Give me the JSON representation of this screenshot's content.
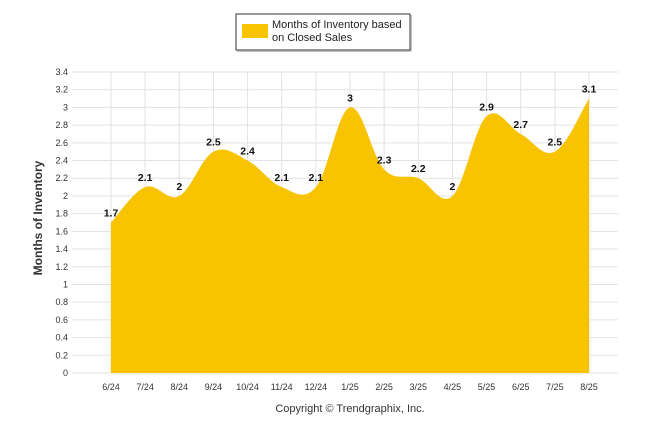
{
  "chart_data": {
    "type": "area",
    "categories": [
      "6/24",
      "7/24",
      "8/24",
      "9/24",
      "10/24",
      "11/24",
      "12/24",
      "1/25",
      "2/25",
      "3/25",
      "4/25",
      "5/25",
      "6/25",
      "7/25",
      "8/25"
    ],
    "series": [
      {
        "name": "Months of Inventory based on Closed Sales",
        "values": [
          1.7,
          2.1,
          2,
          2.5,
          2.4,
          2.1,
          2.1,
          3,
          2.3,
          2.2,
          2,
          2.9,
          2.7,
          2.5,
          3.1
        ],
        "labels": [
          "1.7",
          "2.1",
          "2",
          "2.5",
          "2.4",
          "2.1",
          "2.1",
          "3",
          "2.3",
          "2.2",
          "2",
          "2.9",
          "2.7",
          "2.5",
          "3.1"
        ],
        "color": "#f8c300"
      }
    ],
    "legend": {
      "line1": "Months of Inventory based",
      "line2": "on Closed Sales",
      "position": "top-center"
    },
    "ylabel": "Months of Inventory",
    "ylim": [
      0,
      3.4
    ],
    "yticks": [
      "0",
      "0.2",
      "0.4",
      "0.6",
      "0.8",
      "1",
      "1.2",
      "1.4",
      "1.6",
      "1.8",
      "2",
      "2.2",
      "2.4",
      "2.6",
      "2.8",
      "3",
      "3.2",
      "3.4"
    ],
    "grid": true,
    "footer": "Copyright © Trendgraphix, Inc."
  }
}
